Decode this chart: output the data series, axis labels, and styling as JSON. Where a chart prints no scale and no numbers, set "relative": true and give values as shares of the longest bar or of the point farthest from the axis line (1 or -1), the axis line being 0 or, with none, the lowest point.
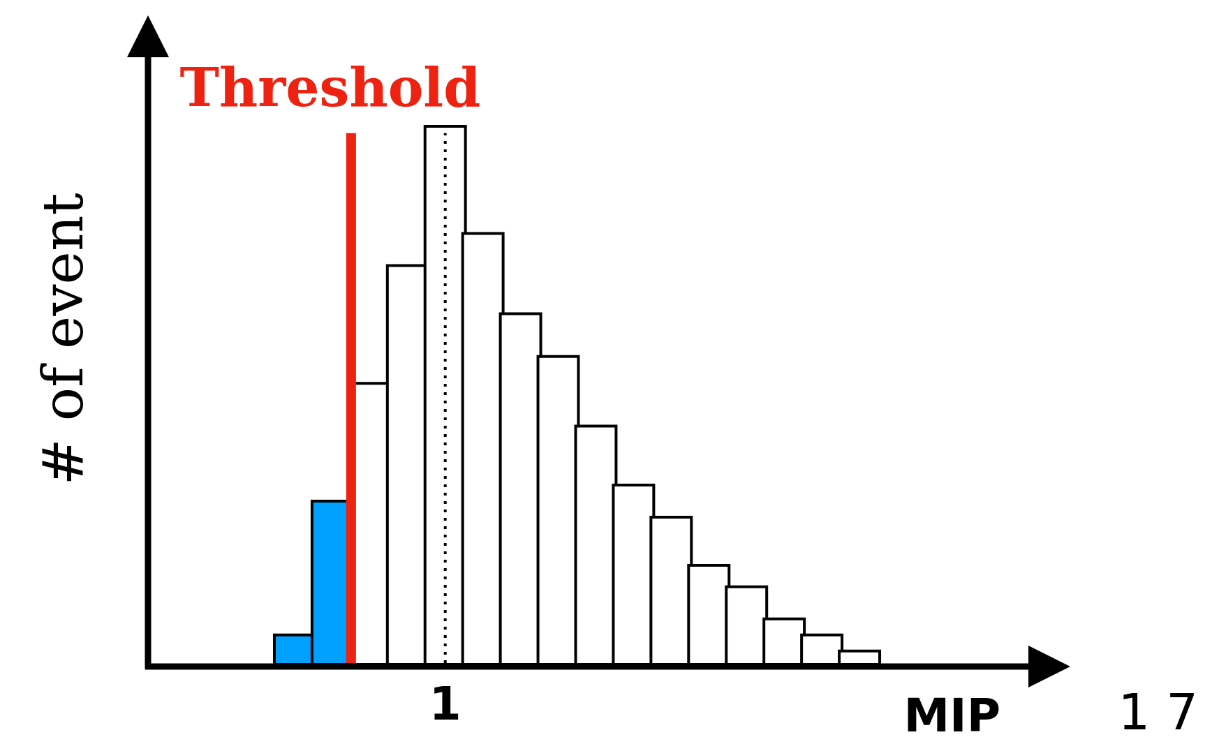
{
  "chart_data": {
    "type": "bar",
    "relative": true,
    "xlabel": "MIP",
    "ylabel": "# of event",
    "categories": [
      null,
      null,
      null,
      null,
      "1",
      null,
      null,
      null,
      null,
      null,
      null,
      null,
      null,
      null,
      null,
      null
    ],
    "values": [
      0.05,
      0.3,
      0.52,
      0.74,
      1,
      0.8,
      0.65,
      0.57,
      0.44,
      0.33,
      0.27,
      0.18,
      0.14,
      0.08,
      0.05,
      0.02
    ],
    "colors": [
      "#00a0ff",
      "#00a0ff",
      "#ffffff",
      "#ffffff",
      "#ffffff",
      "#ffffff",
      "#ffffff",
      "#ffffff",
      "#ffffff",
      "#ffffff",
      "#ffffff",
      "#ffffff",
      "#ffffff",
      "#ffffff",
      "#ffffff",
      "#ffffff"
    ],
    "grid": false,
    "ref_lines": [
      {
        "axis": "x",
        "label": "Threshold",
        "color": "#ee2211",
        "line_style": "solid"
      },
      {
        "axis": "x",
        "value": "1",
        "label": null,
        "color": "#000000",
        "line_style": "dotted"
      }
    ],
    "annotations": [
      "1 7"
    ]
  }
}
